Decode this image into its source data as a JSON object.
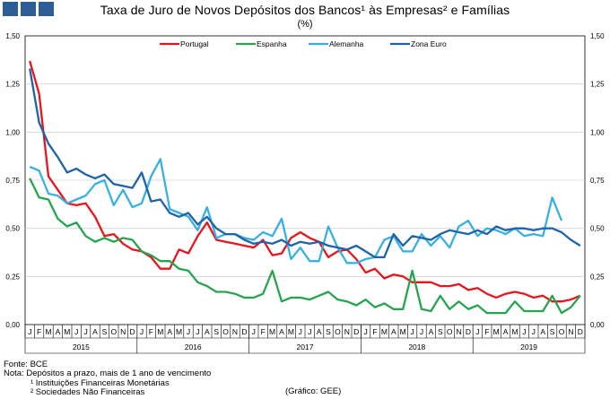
{
  "header": {
    "title": "Taxa de Juro de Novos Depósitos dos Bancos¹ às Empresas² e Famílias",
    "subtitle": "(%)"
  },
  "footer": {
    "source": "Fonte: BCE",
    "note": "Nota: Depósitos a prazo, mais de 1 ano de vencimento",
    "footnote1": "¹ Instituições Financeiras Monetárias",
    "footnote2": "² Sociedades Não Financeiras",
    "credit": "(Gráfico: GEE)"
  },
  "colors": {
    "header_squares": "#2d5d95",
    "portugal": "#e8151c",
    "espanha": "#27a450",
    "alemanha": "#38b0e4",
    "zona_euro": "#1f63a8"
  },
  "chart_data": {
    "type": "line",
    "title": "Taxa de Juro de Novos Depósitos dos Bancos¹ às Empresas² e Famílias",
    "ylabel": "(%)",
    "ylim": [
      0,
      1.5
    ],
    "yticks": [
      "0,00",
      "0,25",
      "0,50",
      "0,75",
      "1,00",
      "1,25",
      "1,50"
    ],
    "grid": true,
    "legend": "top",
    "month_labels": [
      "J",
      "F",
      "M",
      "A",
      "M",
      "J",
      "J",
      "A",
      "S",
      "O",
      "N",
      "D",
      "J",
      "F",
      "M",
      "A",
      "M",
      "J",
      "J",
      "A",
      "S",
      "O",
      "N",
      "D",
      "J",
      "F",
      "M",
      "A",
      "M",
      "J",
      "J",
      "A",
      "S",
      "O",
      "N",
      "D",
      "J",
      "F",
      "M",
      "A",
      "M",
      "J",
      "J",
      "A",
      "S",
      "O",
      "N",
      "D",
      "J",
      "F",
      "M",
      "A",
      "M",
      "J",
      "J",
      "A",
      "S",
      "O",
      "N",
      "D"
    ],
    "years": [
      "2015",
      "2016",
      "2017",
      "2018",
      "2019"
    ],
    "series": [
      {
        "name": "Portugal",
        "color": "#e8151c",
        "values": [
          1.37,
          1.2,
          0.77,
          0.7,
          0.63,
          0.62,
          0.63,
          0.56,
          0.46,
          0.47,
          0.42,
          0.39,
          0.38,
          0.35,
          0.29,
          0.29,
          0.39,
          0.37,
          0.46,
          0.53,
          0.44,
          0.43,
          0.42,
          0.41,
          0.4,
          0.44,
          0.36,
          0.37,
          0.45,
          0.48,
          0.45,
          0.43,
          0.35,
          0.38,
          0.39,
          0.34,
          0.27,
          0.29,
          0.24,
          0.26,
          0.25,
          0.22,
          0.22,
          0.22,
          0.2,
          0.2,
          0.21,
          0.18,
          0.19,
          0.16,
          0.14,
          0.16,
          0.17,
          0.16,
          0.14,
          0.15,
          0.12,
          0.12,
          0.13,
          0.15
        ]
      },
      {
        "name": "Espanha",
        "color": "#27a450",
        "values": [
          0.76,
          0.66,
          0.65,
          0.55,
          0.51,
          0.53,
          0.46,
          0.43,
          0.45,
          0.43,
          0.45,
          0.44,
          0.38,
          0.36,
          0.33,
          0.33,
          0.29,
          0.28,
          0.22,
          0.2,
          0.17,
          0.17,
          0.16,
          0.14,
          0.14,
          0.16,
          0.28,
          0.12,
          0.14,
          0.14,
          0.13,
          0.15,
          0.17,
          0.13,
          0.12,
          0.1,
          0.13,
          0.09,
          0.11,
          0.08,
          0.08,
          0.28,
          0.08,
          0.07,
          0.15,
          0.08,
          0.12,
          0.08,
          0.1,
          0.06,
          0.06,
          0.06,
          0.12,
          0.07,
          0.07,
          0.07,
          0.15,
          0.06,
          0.09,
          0.15
        ]
      },
      {
        "name": "Alemanha",
        "color": "#38b0e4",
        "values": [
          0.82,
          0.8,
          0.68,
          0.67,
          0.63,
          0.65,
          0.67,
          0.73,
          0.75,
          0.62,
          0.7,
          0.61,
          0.63,
          0.77,
          0.86,
          0.6,
          0.58,
          0.56,
          0.49,
          0.61,
          0.45,
          0.47,
          0.47,
          0.45,
          0.44,
          0.48,
          0.46,
          0.55,
          0.34,
          0.4,
          0.33,
          0.33,
          0.51,
          0.4,
          0.32,
          0.32,
          0.34,
          0.35,
          0.44,
          0.46,
          0.38,
          0.38,
          0.47,
          0.41,
          0.46,
          0.4,
          0.51,
          0.54,
          0.46,
          0.5,
          0.49,
          0.47,
          0.5,
          0.46,
          0.47,
          0.46,
          0.66,
          0.54,
          null,
          null
        ]
      },
      {
        "name": "Zona Euro",
        "color": "#1f63a8",
        "values": [
          1.33,
          1.05,
          0.94,
          0.87,
          0.79,
          0.81,
          0.78,
          0.76,
          0.78,
          0.73,
          0.72,
          0.71,
          0.79,
          0.64,
          0.65,
          0.58,
          0.56,
          0.58,
          0.52,
          0.56,
          0.5,
          0.47,
          0.47,
          0.44,
          0.42,
          0.43,
          0.42,
          0.44,
          0.41,
          0.43,
          0.42,
          0.43,
          0.41,
          0.4,
          0.39,
          0.41,
          0.38,
          0.35,
          0.35,
          0.47,
          0.41,
          0.46,
          0.45,
          0.44,
          0.47,
          0.49,
          0.48,
          0.47,
          0.49,
          0.47,
          0.51,
          0.49,
          0.5,
          0.5,
          0.49,
          0.5,
          0.5,
          0.48,
          0.44,
          0.41
        ]
      }
    ]
  }
}
